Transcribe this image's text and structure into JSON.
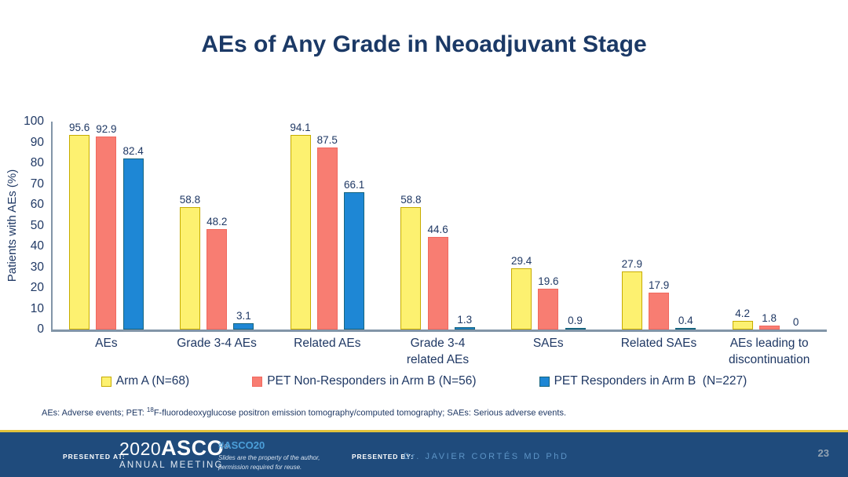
{
  "slide": {
    "title": "AEs of Any Grade in Neoadjuvant Stage"
  },
  "chart_data": {
    "type": "bar",
    "title": "AEs of Any Grade in Neoadjuvant Stage",
    "xlabel": "",
    "ylabel": "Patients with AEs (%)",
    "ylim": [
      0,
      100
    ],
    "ytick_interval": 10,
    "yticks": [
      100,
      90,
      80,
      70,
      60,
      50,
      40,
      30,
      20,
      10,
      0
    ],
    "grid": false,
    "legend_position": "bottom",
    "value_labels": true,
    "categories": [
      "AEs",
      "Grade 3-4 AEs",
      "Related AEs",
      "Grade 3-4 related AEs",
      "SAEs",
      "Related SAEs",
      "AEs leading to discontinuation"
    ],
    "series": [
      {
        "name": "Arm A (N=68)",
        "color": "#FDF170",
        "border_color": "#C7AC00",
        "values": [
          95.6,
          58.8,
          94.1,
          58.8,
          29.4,
          27.9,
          4.2
        ]
      },
      {
        "name": "PET Non-Responders in Arm B (N=56)",
        "color": "#F87D72",
        "border_color": "#F1695F",
        "values": [
          92.9,
          48.2,
          87.5,
          44.6,
          19.6,
          17.9,
          1.8
        ]
      },
      {
        "name": "PET Responders in Arm B  (N=227)",
        "color": "#1E87D5",
        "border_color": "#17657F",
        "values": [
          82.4,
          3.1,
          66.1,
          1.3,
          0.9,
          0.4,
          0
        ]
      }
    ]
  },
  "footnote": {
    "part1": "AEs: Adverse events; PET: ",
    "sup": "18",
    "part2": "F-fluorodeoxyglucose positron emission tomography/computed tomography; SAEs: Serious adverse events."
  },
  "footer": {
    "presented_at_label": "PRESENTED AT:",
    "logo_year": "2020",
    "logo_name": "ASCO",
    "logo_mark": "®",
    "logo_subtitle": "ANNUAL MEETING",
    "hashtag": "#ASCO20",
    "disclaimer_line1": "Slides are the property of the author,",
    "disclaimer_line2": "permission required for reuse.",
    "presented_by_label": "PRESENTED BY:",
    "presenter": "Dr. JAVIER CORTÉS MD PhD",
    "page_number": "23"
  },
  "colors": {
    "title_text": "#1B3966",
    "axis_text": "#1F3864",
    "axis_line": "#8295A8",
    "footer_band": "#1F4B7C",
    "gold_line": "#E2C23C",
    "hashtag_blue": "#4C9FD9",
    "presenter_blue": "#5D94C6"
  }
}
